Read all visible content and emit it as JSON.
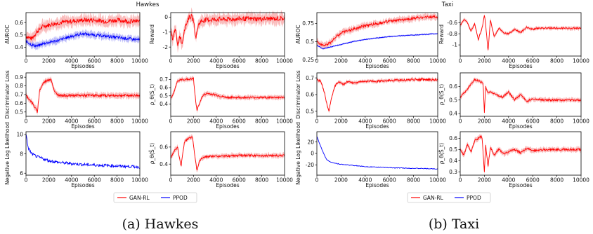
{
  "figures": [
    {
      "title": "Hawkes",
      "caption": "(a) Hawkes",
      "legend": [
        "GAN-RL",
        "PPOD"
      ]
    },
    {
      "title": "Taxi",
      "caption": "(b) Taxi",
      "legend": [
        "GAN-RL",
        "PPOD"
      ]
    }
  ],
  "colors": {
    "gan_rl": "#ff0000",
    "ppod": "#0000ff",
    "band_red": "#f7a6a6",
    "band_blue": "#a6a6f7"
  },
  "chart_data": [
    {
      "type": "line",
      "figure": "Hawkes",
      "subplot": "auroc",
      "xlabel": "Episodes",
      "ylabel": "AUROC",
      "xlim": [
        0,
        10000
      ],
      "ylim": [
        0.33,
        0.68
      ],
      "xticks": [
        0,
        2000,
        4000,
        6000,
        8000,
        10000
      ],
      "yticks": [
        0.4,
        0.5,
        0.6
      ],
      "series": [
        {
          "name": "GAN-RL",
          "x": [
            0,
            500,
            1000,
            1500,
            2000,
            2500,
            3000,
            4000,
            5000,
            6000,
            7000,
            8000,
            9000,
            10000
          ],
          "y": [
            0.49,
            0.47,
            0.53,
            0.57,
            0.58,
            0.59,
            0.6,
            0.61,
            0.62,
            0.62,
            0.61,
            0.62,
            0.61,
            0.61
          ],
          "band": 0.04
        },
        {
          "name": "PPOD",
          "x": [
            0,
            500,
            1000,
            1500,
            2000,
            3000,
            4000,
            5000,
            6000,
            7000,
            8000,
            9000,
            10000
          ],
          "y": [
            0.45,
            0.42,
            0.41,
            0.43,
            0.44,
            0.46,
            0.49,
            0.51,
            0.5,
            0.49,
            0.48,
            0.47,
            0.46
          ],
          "band": 0.025
        }
      ]
    },
    {
      "type": "line",
      "figure": "Hawkes",
      "subplot": "reward",
      "xlabel": "Episodes",
      "ylabel": "Reward",
      "xlim": [
        0,
        10000
      ],
      "ylim": [
        -2.6,
        0.3
      ],
      "xticks": [
        0,
        2000,
        4000,
        6000,
        8000,
        10000
      ],
      "yticks": [
        -2,
        -1,
        0
      ],
      "series": [
        {
          "name": "GAN-RL",
          "x": [
            0,
            200,
            400,
            600,
            800,
            1000,
            1200,
            1400,
            1600,
            1800,
            2000,
            2200,
            2400,
            2600,
            3000,
            4000,
            5000,
            6000,
            8000,
            10000
          ],
          "y": [
            -1.0,
            -1.5,
            -0.6,
            -2.0,
            -1.2,
            -1.8,
            -0.8,
            -0.4,
            0.0,
            0.05,
            -0.2,
            -1.4,
            -0.6,
            -0.3,
            -0.2,
            -0.15,
            -0.15,
            -0.12,
            -0.12,
            -0.1
          ],
          "band": 0.35
        }
      ]
    },
    {
      "type": "line",
      "figure": "Hawkes",
      "subplot": "discriminator_loss",
      "xlabel": "Episodes",
      "ylabel": "Discriminator Loss",
      "xlim": [
        0,
        10000
      ],
      "ylim": [
        0.45,
        0.95
      ],
      "xticks": [
        0,
        2000,
        4000,
        6000,
        8000,
        10000
      ],
      "yticks": [
        0.5,
        0.6,
        0.7,
        0.8,
        0.9
      ],
      "series": [
        {
          "name": "GAN-RL",
          "x": [
            0,
            400,
            800,
            1000,
            1200,
            1500,
            1800,
            2200,
            2500,
            2800,
            3200,
            4000,
            6000,
            8000,
            10000
          ],
          "y": [
            0.69,
            0.63,
            0.55,
            0.5,
            0.75,
            0.83,
            0.86,
            0.88,
            0.73,
            0.7,
            0.69,
            0.69,
            0.69,
            0.69,
            0.69
          ],
          "band": 0.03
        }
      ]
    },
    {
      "type": "line",
      "figure": "Hawkes",
      "subplot": "rho_s",
      "xlabel": "Episodes",
      "ylabel": "ρ_θ(S_t)",
      "xlim": [
        0,
        10000
      ],
      "ylim": [
        0.25,
        0.78
      ],
      "xticks": [
        0,
        2000,
        4000,
        6000,
        8000,
        10000
      ],
      "yticks": [
        0.4,
        0.5,
        0.6,
        0.7
      ],
      "series": [
        {
          "name": "GAN-RL",
          "x": [
            0,
            300,
            600,
            1000,
            1500,
            2000,
            2100,
            2300,
            2500,
            2800,
            3200,
            4000,
            4500,
            5000,
            6000,
            8000,
            10000
          ],
          "y": [
            0.47,
            0.55,
            0.68,
            0.7,
            0.7,
            0.71,
            0.55,
            0.32,
            0.4,
            0.5,
            0.53,
            0.51,
            0.49,
            0.48,
            0.48,
            0.48,
            0.48
          ],
          "band": 0.025
        }
      ]
    },
    {
      "type": "line",
      "figure": "Hawkes",
      "subplot": "neg_log_likelihood",
      "xlabel": "Episodes",
      "ylabel": "Negative Log Likelihood",
      "xlim": [
        0,
        10000
      ],
      "ylim": [
        5.8,
        10.3
      ],
      "xticks": [
        0,
        2000,
        4000,
        6000,
        8000,
        10000
      ],
      "yticks": [
        6,
        8,
        10
      ],
      "series": [
        {
          "name": "PPOD",
          "x": [
            0,
            200,
            500,
            1000,
            1500,
            2000,
            3000,
            4000,
            5000,
            6000,
            7000,
            8000,
            9000,
            10000
          ],
          "y": [
            10.0,
            8.6,
            8.0,
            7.7,
            7.5,
            7.3,
            7.1,
            7.0,
            6.9,
            6.85,
            6.8,
            6.75,
            6.7,
            6.65
          ],
          "noise": 0.15
        }
      ]
    },
    {
      "type": "line",
      "figure": "Hawkes",
      "subplot": "rho_s_hat",
      "xlabel": "Episodes",
      "ylabel": "ρ_θ(Ŝ_t)",
      "xlim": [
        0,
        10000
      ],
      "ylim": [
        0.27,
        0.78
      ],
      "xticks": [
        0,
        2000,
        4000,
        6000,
        8000,
        10000
      ],
      "yticks": [
        0.4,
        0.6
      ],
      "series": [
        {
          "name": "GAN-RL",
          "x": [
            0,
            300,
            600,
            900,
            1200,
            1500,
            1900,
            2100,
            2300,
            2500,
            2800,
            3500,
            4000,
            6000,
            8000,
            10000
          ],
          "y": [
            0.47,
            0.55,
            0.6,
            0.37,
            0.66,
            0.7,
            0.72,
            0.52,
            0.32,
            0.43,
            0.48,
            0.49,
            0.49,
            0.5,
            0.5,
            0.5
          ],
          "band": 0.025
        }
      ]
    },
    {
      "type": "line",
      "figure": "Taxi",
      "subplot": "auroc",
      "xlabel": "Episodes",
      "ylabel": "AUROC",
      "xlim": [
        0,
        10000
      ],
      "ylim": [
        0.3,
        0.9
      ],
      "xticks": [
        0,
        2000,
        4000,
        6000,
        8000,
        10000
      ],
      "yticks": [
        0.25,
        0.5,
        0.75
      ],
      "series": [
        {
          "name": "GAN-RL",
          "x": [
            0,
            500,
            1000,
            1500,
            2000,
            3000,
            4000,
            5000,
            6000,
            7000,
            8000,
            9000,
            10000
          ],
          "y": [
            0.5,
            0.45,
            0.47,
            0.55,
            0.62,
            0.67,
            0.72,
            0.75,
            0.78,
            0.8,
            0.82,
            0.84,
            0.84
          ],
          "band": 0.04
        },
        {
          "name": "PPOD",
          "x": [
            0,
            500,
            1000,
            2000,
            3000,
            4000,
            5000,
            6000,
            7000,
            8000,
            9000,
            10000
          ],
          "y": [
            0.45,
            0.4,
            0.42,
            0.46,
            0.5,
            0.53,
            0.55,
            0.57,
            0.58,
            0.59,
            0.6,
            0.61
          ],
          "band": 0.01
        }
      ]
    },
    {
      "type": "line",
      "figure": "Taxi",
      "subplot": "reward",
      "xlabel": "Episodes",
      "ylabel": "Reward",
      "xlim": [
        0,
        10000
      ],
      "ylim": [
        -1.2,
        -0.42
      ],
      "xticks": [
        0,
        2000,
        4000,
        6000,
        8000,
        10000
      ],
      "yticks": [
        -1.0,
        -0.8,
        -0.6
      ],
      "series": [
        {
          "name": "GAN-RL",
          "x": [
            0,
            300,
            600,
            900,
            1200,
            1500,
            1800,
            2000,
            2100,
            2300,
            2500,
            2800,
            3200,
            3600,
            4000,
            4500,
            5000,
            5500,
            6000,
            6500,
            7000,
            8000,
            9000,
            10000
          ],
          "y": [
            -0.65,
            -0.55,
            -0.6,
            -0.75,
            -0.62,
            -0.9,
            -0.7,
            -0.48,
            -0.6,
            -1.12,
            -0.55,
            -0.85,
            -0.7,
            -0.78,
            -0.8,
            -0.72,
            -0.78,
            -0.68,
            -0.72,
            -0.7,
            -0.7,
            -0.7,
            -0.7,
            -0.7
          ],
          "band": 0.03
        }
      ]
    },
    {
      "type": "line",
      "figure": "Taxi",
      "subplot": "discriminator_loss",
      "xlabel": "Episodes",
      "ylabel": "Discriminator Loss",
      "xlim": [
        0,
        10000
      ],
      "ylim": [
        0.47,
        0.73
      ],
      "xticks": [
        0,
        2000,
        4000,
        6000,
        8000,
        10000
      ],
      "yticks": [
        0.5,
        0.6,
        0.7
      ],
      "series": [
        {
          "name": "GAN-RL",
          "x": [
            0,
            300,
            600,
            900,
            1000,
            1200,
            1500,
            1800,
            2200,
            2600,
            3000,
            4000,
            5000,
            6000,
            7000,
            8000,
            9000,
            10000
          ],
          "y": [
            0.69,
            0.68,
            0.62,
            0.52,
            0.5,
            0.58,
            0.65,
            0.68,
            0.66,
            0.68,
            0.67,
            0.68,
            0.68,
            0.685,
            0.685,
            0.69,
            0.69,
            0.69
          ],
          "band": 0.01,
          "noise": 0.006
        }
      ]
    },
    {
      "type": "line",
      "figure": "Taxi",
      "subplot": "rho_s",
      "xlabel": "Episodes",
      "ylabel": "ρ_θ(S_t)",
      "xlim": [
        0,
        10000
      ],
      "ylim": [
        0.38,
        0.7
      ],
      "xticks": [
        0,
        2000,
        4000,
        6000,
        8000,
        10000
      ],
      "yticks": [
        0.4,
        0.5,
        0.6
      ],
      "series": [
        {
          "name": "GAN-RL",
          "x": [
            0,
            300,
            600,
            900,
            1200,
            1600,
            1900,
            2000,
            2100,
            2300,
            2500,
            3000,
            3500,
            4000,
            4500,
            5000,
            5500,
            6000,
            7000,
            8000,
            10000
          ],
          "y": [
            0.52,
            0.55,
            0.58,
            0.62,
            0.65,
            0.64,
            0.62,
            0.4,
            0.6,
            0.55,
            0.56,
            0.54,
            0.52,
            0.56,
            0.5,
            0.54,
            0.49,
            0.51,
            0.5,
            0.5,
            0.5
          ],
          "band": 0.015
        }
      ]
    },
    {
      "type": "line",
      "figure": "Taxi",
      "subplot": "neg_log_likelihood",
      "xlabel": "Episodes",
      "ylabel": "Negative Log Likelihood",
      "xlim": [
        0,
        10000
      ],
      "ylim": [
        -38,
        38
      ],
      "xticks": [
        0,
        2000,
        4000,
        6000,
        8000,
        10000
      ],
      "yticks": [
        -20,
        0,
        20
      ],
      "series": [
        {
          "name": "PPOD",
          "x": [
            0,
            200,
            400,
            600,
            800,
            1000,
            1500,
            2000,
            3000,
            4000,
            5000,
            6000,
            7000,
            8000,
            9000,
            10000
          ],
          "y": [
            30,
            18,
            8,
            -2,
            -10,
            -14,
            -17,
            -19,
            -21,
            -23,
            -24,
            -25,
            -25.5,
            -26,
            -26.5,
            -27
          ],
          "noise": 0.6
        }
      ]
    },
    {
      "type": "line",
      "figure": "Taxi",
      "subplot": "rho_s_hat",
      "xlabel": "Episodes",
      "ylabel": "ρ_θ(Ŝ_t)",
      "xlim": [
        0,
        10000
      ],
      "ylim": [
        0.27,
        0.66
      ],
      "xticks": [
        0,
        2000,
        4000,
        6000,
        8000,
        10000
      ],
      "yticks": [
        0.3,
        0.4,
        0.5,
        0.6
      ],
      "series": [
        {
          "name": "GAN-RL",
          "x": [
            0,
            300,
            600,
            900,
            1200,
            1500,
            1800,
            2000,
            2100,
            2300,
            2500,
            2800,
            3200,
            3600,
            4000,
            4500,
            5000,
            5500,
            6000,
            7000,
            8000,
            9000,
            10000
          ],
          "y": [
            0.5,
            0.45,
            0.55,
            0.48,
            0.58,
            0.6,
            0.62,
            0.3,
            0.55,
            0.35,
            0.52,
            0.45,
            0.5,
            0.46,
            0.48,
            0.5,
            0.47,
            0.51,
            0.49,
            0.5,
            0.5,
            0.5,
            0.5
          ],
          "band": 0.02
        }
      ]
    }
  ]
}
